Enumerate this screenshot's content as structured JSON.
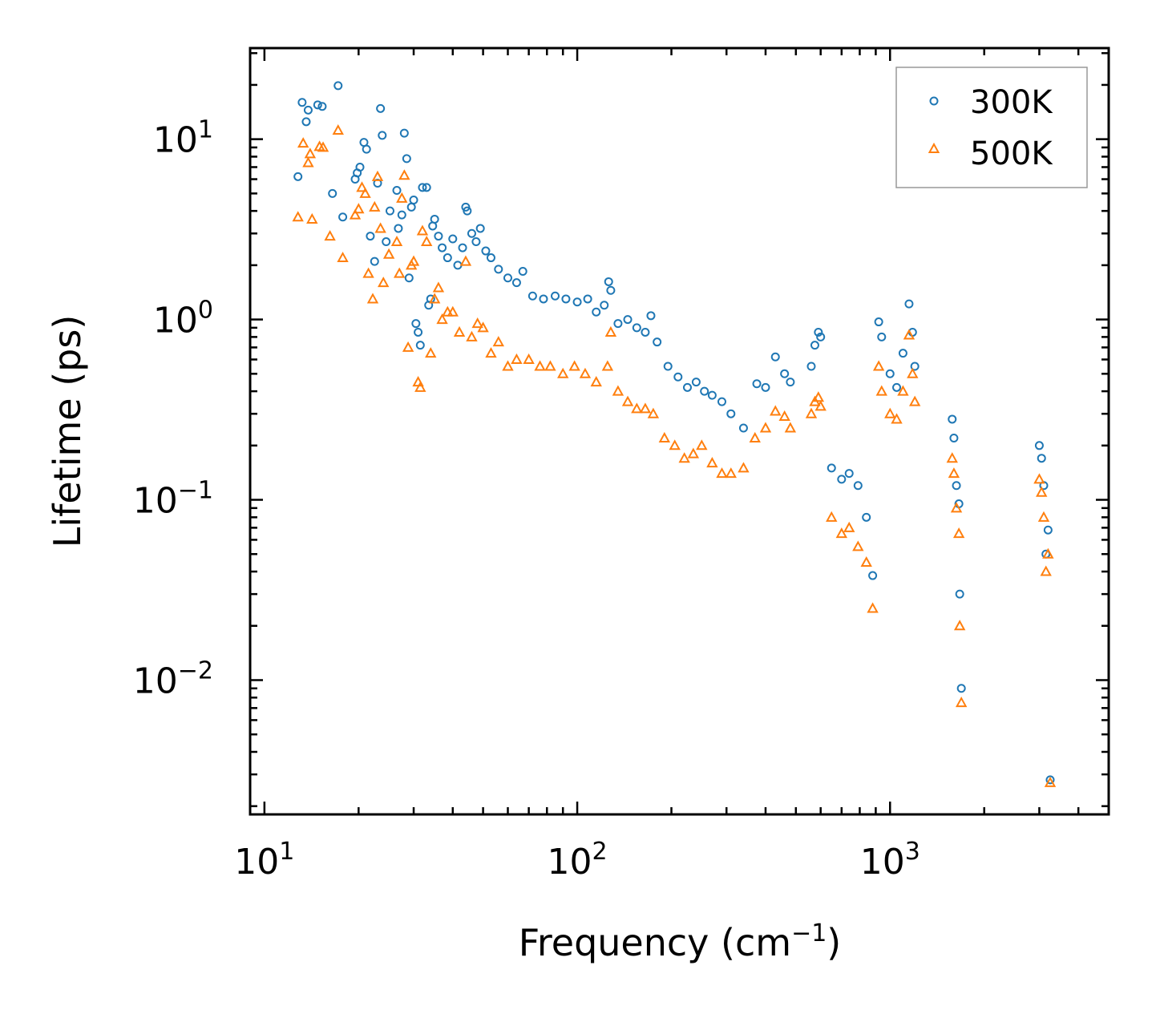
{
  "chart_data": {
    "type": "scatter",
    "title": "",
    "xlabel_base": "Frequency (cm",
    "xlabel_exp": "−1",
    "xlabel_close": ")",
    "ylabel": "Lifetime (ps)",
    "xscale": "log",
    "yscale": "log",
    "xlim": [
      9,
      5000
    ],
    "ylim": [
      0.0018,
      32
    ],
    "grid": false,
    "legend_position": "top-right",
    "x_ticks": [
      {
        "value": 10,
        "base": "10",
        "exp": "1"
      },
      {
        "value": 100,
        "base": "10",
        "exp": "2"
      },
      {
        "value": 1000,
        "base": "10",
        "exp": "3"
      }
    ],
    "y_ticks": [
      {
        "value": 10,
        "base": "10",
        "exp": "1"
      },
      {
        "value": 1,
        "base": "10",
        "exp": "0"
      },
      {
        "value": 0.1,
        "base": "10",
        "exp": "−1"
      },
      {
        "value": 0.01,
        "base": "10",
        "exp": "−2"
      }
    ],
    "series": [
      {
        "name": "300K",
        "color": "#1f77b4",
        "marker": "circle-open",
        "points": [
          [
            12.8,
            6.2
          ],
          [
            13.2,
            16
          ],
          [
            13.6,
            12.5
          ],
          [
            13.8,
            14.5
          ],
          [
            14.8,
            15.5
          ],
          [
            15.3,
            15.2
          ],
          [
            16.5,
            5.0
          ],
          [
            17.2,
            19.8
          ],
          [
            17.8,
            3.7
          ],
          [
            19.5,
            6.0
          ],
          [
            19.8,
            6.5
          ],
          [
            20.2,
            7.0
          ],
          [
            20.8,
            9.6
          ],
          [
            21.2,
            8.8
          ],
          [
            21.8,
            2.9
          ],
          [
            22.5,
            2.1
          ],
          [
            23.0,
            5.7
          ],
          [
            23.5,
            14.8
          ],
          [
            23.8,
            10.5
          ],
          [
            24.5,
            2.7
          ],
          [
            25.2,
            4.0
          ],
          [
            26.5,
            5.2
          ],
          [
            26.8,
            3.2
          ],
          [
            27.5,
            3.8
          ],
          [
            28.0,
            10.8
          ],
          [
            28.5,
            7.8
          ],
          [
            29.0,
            1.7
          ],
          [
            29.5,
            4.2
          ],
          [
            30.0,
            4.6
          ],
          [
            30.5,
            0.95
          ],
          [
            31.0,
            0.85
          ],
          [
            31.5,
            0.72
          ],
          [
            32.0,
            5.4
          ],
          [
            33.0,
            5.4
          ],
          [
            33.5,
            1.2
          ],
          [
            34.0,
            1.3
          ],
          [
            34.5,
            3.3
          ],
          [
            35.0,
            3.6
          ],
          [
            36.0,
            2.9
          ],
          [
            37.0,
            2.5
          ],
          [
            38.5,
            2.2
          ],
          [
            40.0,
            2.8
          ],
          [
            41.5,
            2.0
          ],
          [
            43.0,
            2.5
          ],
          [
            44.0,
            4.2
          ],
          [
            44.5,
            4.0
          ],
          [
            46.0,
            3.0
          ],
          [
            47.5,
            2.7
          ],
          [
            49.0,
            3.2
          ],
          [
            51.0,
            2.4
          ],
          [
            53.0,
            2.2
          ],
          [
            56.0,
            1.9
          ],
          [
            60.0,
            1.7
          ],
          [
            64.0,
            1.6
          ],
          [
            67.0,
            1.85
          ],
          [
            72.0,
            1.35
          ],
          [
            78.0,
            1.3
          ],
          [
            85.0,
            1.35
          ],
          [
            92.0,
            1.3
          ],
          [
            100.0,
            1.25
          ],
          [
            108.0,
            1.3
          ],
          [
            115.0,
            1.1
          ],
          [
            122.0,
            1.2
          ],
          [
            126.0,
            1.62
          ],
          [
            128.0,
            1.45
          ],
          [
            135.0,
            0.95
          ],
          [
            145.0,
            1.0
          ],
          [
            155.0,
            0.9
          ],
          [
            165.0,
            0.85
          ],
          [
            172.0,
            1.05
          ],
          [
            180.0,
            0.75
          ],
          [
            195.0,
            0.55
          ],
          [
            210.0,
            0.48
          ],
          [
            225.0,
            0.42
          ],
          [
            240.0,
            0.45
          ],
          [
            255.0,
            0.4
          ],
          [
            270.0,
            0.38
          ],
          [
            290.0,
            0.35
          ],
          [
            310.0,
            0.3
          ],
          [
            340.0,
            0.25
          ],
          [
            375.0,
            0.44
          ],
          [
            400.0,
            0.42
          ],
          [
            430.0,
            0.62
          ],
          [
            460.0,
            0.5
          ],
          [
            480.0,
            0.45
          ],
          [
            560.0,
            0.55
          ],
          [
            575.0,
            0.72
          ],
          [
            590.0,
            0.85
          ],
          [
            600.0,
            0.8
          ],
          [
            650.0,
            0.15
          ],
          [
            700.0,
            0.13
          ],
          [
            740.0,
            0.14
          ],
          [
            790.0,
            0.12
          ],
          [
            840.0,
            0.08
          ],
          [
            880.0,
            0.038
          ],
          [
            920.0,
            0.97
          ],
          [
            940.0,
            0.8
          ],
          [
            1000.0,
            0.5
          ],
          [
            1050.0,
            0.42
          ],
          [
            1100.0,
            0.65
          ],
          [
            1150.0,
            1.22
          ],
          [
            1180.0,
            0.85
          ],
          [
            1200.0,
            0.55
          ],
          [
            1580.0,
            0.28
          ],
          [
            1600.0,
            0.22
          ],
          [
            1630.0,
            0.12
          ],
          [
            1660.0,
            0.095
          ],
          [
            1670.0,
            0.03
          ],
          [
            1690.0,
            0.009
          ],
          [
            3000.0,
            0.2
          ],
          [
            3050.0,
            0.17
          ],
          [
            3100.0,
            0.12
          ],
          [
            3150.0,
            0.05
          ],
          [
            3200.0,
            0.068
          ],
          [
            3250.0,
            0.0028
          ]
        ]
      },
      {
        "name": "500K",
        "color": "#ff7f0e",
        "marker": "triangle-open",
        "points": [
          [
            12.8,
            3.7
          ],
          [
            13.3,
            9.5
          ],
          [
            13.8,
            7.4
          ],
          [
            14.0,
            8.3
          ],
          [
            14.2,
            3.6
          ],
          [
            15.0,
            9.1
          ],
          [
            15.4,
            9.0
          ],
          [
            16.2,
            2.9
          ],
          [
            17.2,
            11.2
          ],
          [
            17.8,
            2.2
          ],
          [
            19.5,
            3.8
          ],
          [
            20.0,
            4.1
          ],
          [
            20.5,
            5.4
          ],
          [
            21.0,
            5.0
          ],
          [
            21.5,
            1.8
          ],
          [
            22.2,
            1.3
          ],
          [
            22.5,
            4.2
          ],
          [
            23.0,
            6.2
          ],
          [
            23.5,
            3.2
          ],
          [
            24.0,
            1.6
          ],
          [
            25.0,
            2.3
          ],
          [
            26.5,
            2.7
          ],
          [
            27.0,
            1.8
          ],
          [
            27.5,
            4.7
          ],
          [
            28.0,
            6.3
          ],
          [
            28.8,
            0.7
          ],
          [
            29.5,
            2.0
          ],
          [
            30.0,
            2.1
          ],
          [
            31.0,
            0.45
          ],
          [
            31.5,
            0.42
          ],
          [
            32.0,
            3.1
          ],
          [
            33.0,
            2.7
          ],
          [
            34.0,
            0.65
          ],
          [
            35.0,
            1.3
          ],
          [
            36.0,
            1.5
          ],
          [
            37.0,
            1.0
          ],
          [
            38.5,
            1.1
          ],
          [
            40.0,
            1.1
          ],
          [
            42.0,
            0.85
          ],
          [
            44.0,
            2.1
          ],
          [
            46.0,
            0.8
          ],
          [
            48.0,
            0.95
          ],
          [
            50.0,
            0.9
          ],
          [
            53.0,
            0.65
          ],
          [
            56.0,
            0.75
          ],
          [
            60.0,
            0.55
          ],
          [
            64.0,
            0.6
          ],
          [
            70.0,
            0.6
          ],
          [
            76.0,
            0.55
          ],
          [
            82.0,
            0.55
          ],
          [
            90.0,
            0.5
          ],
          [
            98.0,
            0.55
          ],
          [
            106.0,
            0.5
          ],
          [
            115.0,
            0.45
          ],
          [
            125.0,
            0.55
          ],
          [
            128.0,
            0.85
          ],
          [
            135.0,
            0.4
          ],
          [
            145.0,
            0.35
          ],
          [
            155.0,
            0.32
          ],
          [
            165.0,
            0.32
          ],
          [
            175.0,
            0.3
          ],
          [
            190.0,
            0.22
          ],
          [
            205.0,
            0.2
          ],
          [
            220.0,
            0.17
          ],
          [
            235.0,
            0.18
          ],
          [
            250.0,
            0.2
          ],
          [
            270.0,
            0.16
          ],
          [
            290.0,
            0.14
          ],
          [
            310.0,
            0.14
          ],
          [
            340.0,
            0.15
          ],
          [
            370.0,
            0.22
          ],
          [
            400.0,
            0.25
          ],
          [
            430.0,
            0.31
          ],
          [
            460.0,
            0.29
          ],
          [
            480.0,
            0.25
          ],
          [
            560.0,
            0.3
          ],
          [
            575.0,
            0.35
          ],
          [
            590.0,
            0.37
          ],
          [
            600.0,
            0.33
          ],
          [
            650.0,
            0.08
          ],
          [
            700.0,
            0.065
          ],
          [
            740.0,
            0.07
          ],
          [
            790.0,
            0.055
          ],
          [
            840.0,
            0.045
          ],
          [
            880.0,
            0.025
          ],
          [
            920.0,
            0.55
          ],
          [
            940.0,
            0.4
          ],
          [
            1000.0,
            0.3
          ],
          [
            1050.0,
            0.28
          ],
          [
            1100.0,
            0.4
          ],
          [
            1150.0,
            0.82
          ],
          [
            1180.0,
            0.5
          ],
          [
            1200.0,
            0.35
          ],
          [
            1580.0,
            0.17
          ],
          [
            1600.0,
            0.14
          ],
          [
            1630.0,
            0.09
          ],
          [
            1660.0,
            0.065
          ],
          [
            1670.0,
            0.02
          ],
          [
            1690.0,
            0.0075
          ],
          [
            3000.0,
            0.13
          ],
          [
            3050.0,
            0.11
          ],
          [
            3100.0,
            0.08
          ],
          [
            3150.0,
            0.04
          ],
          [
            3200.0,
            0.05
          ],
          [
            3250.0,
            0.0027
          ]
        ]
      }
    ]
  }
}
